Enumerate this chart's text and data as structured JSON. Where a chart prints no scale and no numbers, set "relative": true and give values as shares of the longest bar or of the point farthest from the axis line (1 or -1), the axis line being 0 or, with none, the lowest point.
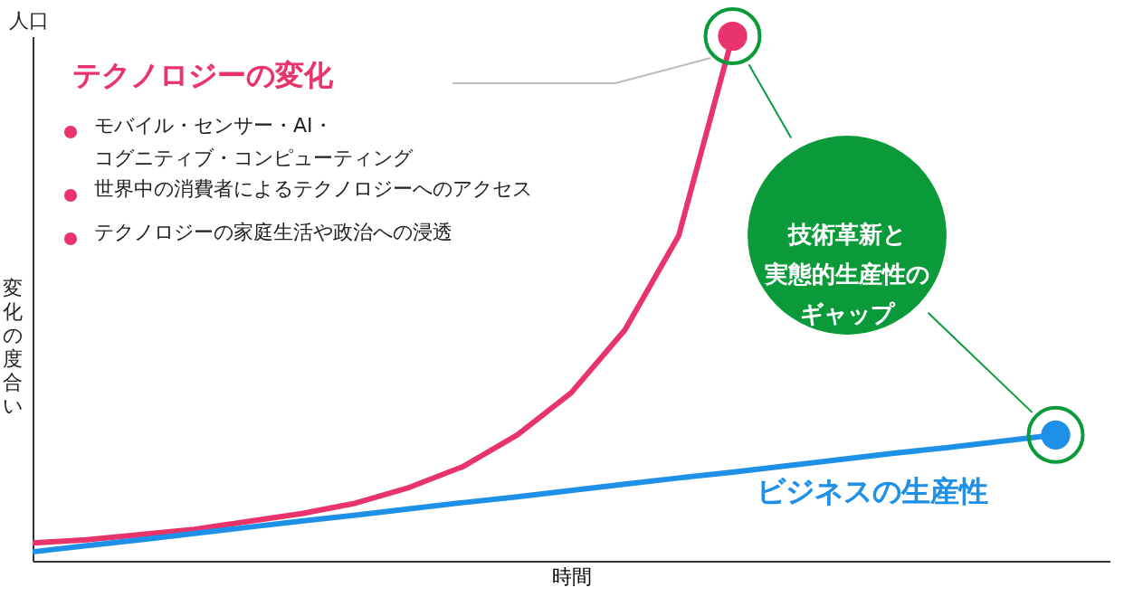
{
  "chart_data": {
    "type": "line",
    "relative": true,
    "xlabel": "時間",
    "ylabel": "変化の度合い",
    "grid": false,
    "line_style": "solid",
    "categories": [
      null,
      null,
      null,
      null,
      null,
      null,
      null,
      null,
      null,
      null,
      null,
      null,
      null,
      null,
      null,
      null,
      null,
      null,
      null,
      null,
      null
    ],
    "series": [
      {
        "name": "テクノロジーの変化",
        "color": "#e8336b",
        "values": [
          0.034,
          0.04,
          0.05,
          0.06,
          0.075,
          0.09,
          0.11,
          0.14,
          0.18,
          0.24,
          0.32,
          0.44,
          0.62,
          1,
          null,
          null,
          null,
          null,
          null,
          null,
          null
        ]
      },
      {
        "name": "ビジネスの生産性",
        "color": "#1e90e8",
        "values": [
          0.017,
          0.029,
          0.04,
          0.052,
          0.064,
          0.076,
          0.087,
          0.099,
          0.111,
          0.122,
          0.134,
          0.146,
          0.158,
          0.169,
          0.181,
          0.193,
          0.205,
          0.216,
          0.228,
          0.24,
          null
        ]
      }
    ],
    "annotations": [
      "人口",
      "モバイル・センサー・AI・コグニティブ・コンピューティング",
      "世界中の消費者によるテクノロジーへのアクセス",
      "テクノロジーの家庭生活や政治への浸透",
      "技術革新と実態的生産性のギャップ"
    ]
  }
}
